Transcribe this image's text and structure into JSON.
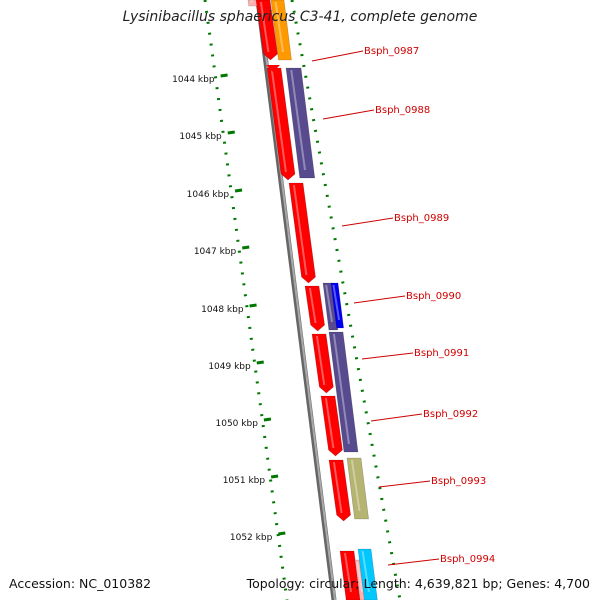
{
  "title": "Lysinibacillus sphaericus C3-41, complete genome",
  "accession_text": "Accession: NC_010382",
  "summary_text": "Topology: circular; Length: 4,639,821 bp; Genes: 4,700",
  "colors": {
    "cds": "#ff0000",
    "backbone": "#808080",
    "gc_ticks": "#007700",
    "label": "#cc0000",
    "cog_orange": "#ff9900",
    "cog_purple": "#574a8f",
    "cog_blue": "#0000ee",
    "cog_khaki": "#b5b470",
    "cog_cyan": "#00c8ff"
  },
  "kbp_ticks": [
    "1044 kbp",
    "1045 kbp",
    "1046 kbp",
    "1047 kbp",
    "1048 kbp",
    "1049 kbp",
    "1050 kbp",
    "1051 kbp",
    "1052 kbp"
  ],
  "gene_labels": [
    "Bsph_0987",
    "Bsph_0988",
    "Bsph_0989",
    "Bsph_0990",
    "Bsph_0991",
    "Bsph_0992",
    "Bsph_0993",
    "Bsph_0994"
  ]
}
